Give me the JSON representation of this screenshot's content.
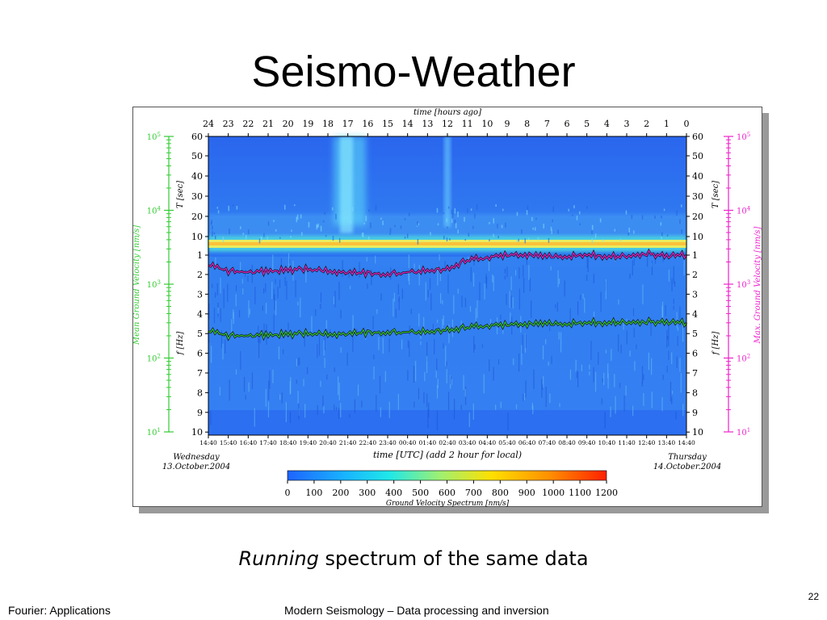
{
  "slide": {
    "title": "Seismo-Weather",
    "caption_italic": "Running",
    "caption_rest": " spectrum of the same data",
    "footer_left": "Fourier: Applications",
    "footer_center": "Modern Seismology – Data processing and inversion",
    "page_number": "22"
  },
  "chart_data": {
    "type": "heatmap",
    "title": "",
    "top_axis_label": "time [hours ago]",
    "top_ticks": [
      "24",
      "23",
      "22",
      "21",
      "20",
      "19",
      "18",
      "17",
      "16",
      "15",
      "14",
      "13",
      "12",
      "11",
      "10",
      "9",
      "8",
      "7",
      "6",
      "5",
      "4",
      "3",
      "2",
      "1",
      "0"
    ],
    "bottom_axis_label": "time [UTC] (add 2 hour for local)",
    "bottom_ticks": [
      "14:40",
      "15:40",
      "16:40",
      "17:40",
      "18:40",
      "19:40",
      "20:40",
      "21:40",
      "22:40",
      "23:40",
      "00:40",
      "01:40",
      "02:40",
      "03:40",
      "04:40",
      "05:40",
      "06:40",
      "07:40",
      "08:40",
      "09:40",
      "10:40",
      "11:40",
      "12:40",
      "13:40",
      "14:40"
    ],
    "left_date": {
      "day": "Wednesday",
      "date": "13.October.2004"
    },
    "right_date": {
      "day": "Thursday",
      "date": "14.October.2004"
    },
    "period_axis_label": "T [sec]",
    "period_ticks": [
      "60",
      "50",
      "40",
      "30",
      "20",
      "10",
      "1"
    ],
    "freq_axis_label": "f [Hz]",
    "freq_ticks": [
      "2",
      "3",
      "4",
      "5",
      "6",
      "7",
      "8",
      "9",
      "10"
    ],
    "left_axis_label": "Mean Ground Velocity [nm/s]",
    "left_axis_color": "#33cc33",
    "right_axis_label": "Max. Ground Velocity [nm/s]",
    "right_axis_color": "#ee22cc",
    "velocity_ticks": [
      {
        "base": "10",
        "exp": "5"
      },
      {
        "base": "10",
        "exp": "4"
      },
      {
        "base": "10",
        "exp": "3"
      },
      {
        "base": "10",
        "exp": "2"
      },
      {
        "base": "10",
        "exp": "1"
      }
    ],
    "colorbar": {
      "label": "Ground Velocity Spectrum [nm/s]",
      "ticks": [
        "0",
        "100",
        "200",
        "300",
        "400",
        "500",
        "600",
        "700",
        "800",
        "900",
        "1000",
        "1100",
        "1200"
      ],
      "range": [
        0,
        1200
      ],
      "colors": [
        "#1e64ff",
        "#18b4ff",
        "#20e8e8",
        "#a0f070",
        "#ffe000",
        "#ff9000",
        "#ff2000"
      ]
    },
    "series": [
      {
        "color": "#ee22cc",
        "x_hours_ago": [
          24,
          23,
          22,
          21,
          20,
          19,
          18,
          17,
          16,
          15,
          14,
          13,
          12,
          11,
          10,
          9,
          8,
          7,
          6,
          5,
          4,
          3,
          2,
          1,
          0
        ],
        "values": [
          1800,
          1500,
          1450,
          1500,
          1550,
          1600,
          1500,
          1450,
          1400,
          1350,
          1450,
          1550,
          1600,
          2100,
          2300,
          2500,
          2500,
          2400,
          2400,
          2500,
          2400,
          2400,
          2600,
          2400,
          2500
        ]
      },
      {
        "color": "#33cc33",
        "x_hours_ago": [
          24,
          23,
          22,
          21,
          20,
          19,
          18,
          17,
          16,
          15,
          14,
          13,
          12,
          11,
          10,
          9,
          8,
          7,
          6,
          5,
          4,
          3,
          2,
          1,
          0
        ],
        "values": [
          230,
          200,
          200,
          205,
          210,
          215,
          210,
          215,
          220,
          220,
          225,
          230,
          240,
          260,
          275,
          285,
          290,
          295,
          295,
          300,
          305,
          305,
          310,
          305,
          300
        ]
      }
    ]
  }
}
